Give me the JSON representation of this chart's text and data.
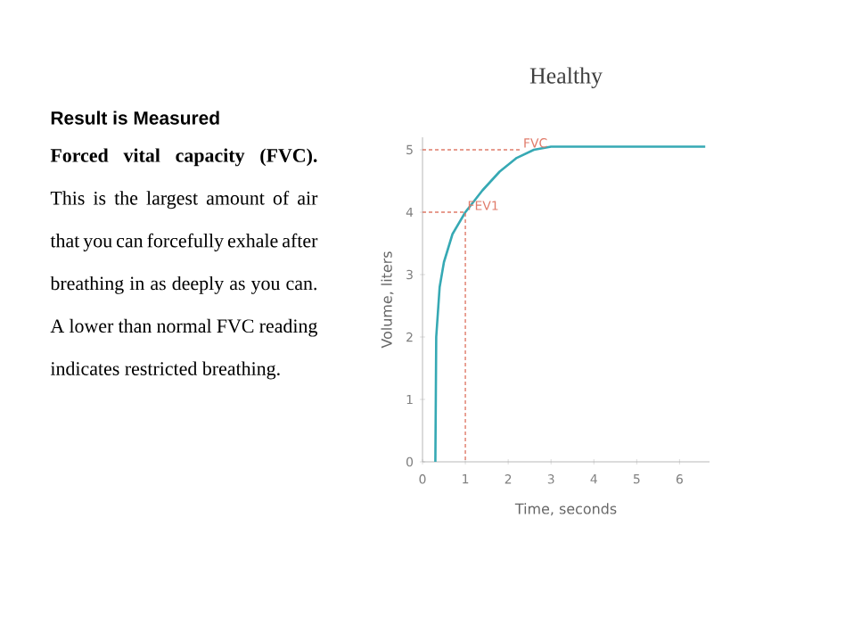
{
  "chart_data": {
    "type": "line",
    "title": "Healthy",
    "xlabel": "Time, seconds",
    "ylabel": "Volume, liters",
    "xlim": [
      0,
      6.7
    ],
    "ylim": [
      0,
      5.2
    ],
    "xticks": [
      0,
      1,
      2,
      3,
      4,
      5,
      6
    ],
    "yticks": [
      0,
      1,
      2,
      3,
      4,
      5
    ],
    "grid": false,
    "marker": "none",
    "series": [
      {
        "color": "#36a9b4",
        "line_style": "solid",
        "x": [
          0.3,
          0.31,
          0.32,
          0.4,
          0.5,
          0.7,
          1,
          1.4,
          1.8,
          2.2,
          2.6,
          3,
          4,
          5,
          6.6
        ],
        "values": [
          0,
          1,
          2,
          2.8,
          3.2,
          3.65,
          4,
          4.35,
          4.65,
          4.87,
          5.0,
          5.05,
          5.05,
          5.05,
          5.05
        ]
      },
      {
        "color": "#e07b6a",
        "line_style": "dashed",
        "x": [
          0,
          1,
          1
        ],
        "values": [
          4,
          4,
          0
        ]
      },
      {
        "color": "#e07b6a",
        "line_style": "dashed",
        "x": [
          0,
          2.3
        ],
        "values": [
          5,
          5
        ]
      }
    ],
    "annotations": [
      {
        "text": "FVC",
        "x": 2.3,
        "y": 5
      },
      {
        "text": "FEV1",
        "x": 1,
        "y": 4
      },
      "Result is Measured",
      "**Forced vital capacity (FVC).** This is the largest amount of air that you can forcefully exhale after breathing in as deeply as you can. A lower than normal FVC reading indicates restricted breathing."
    ]
  }
}
